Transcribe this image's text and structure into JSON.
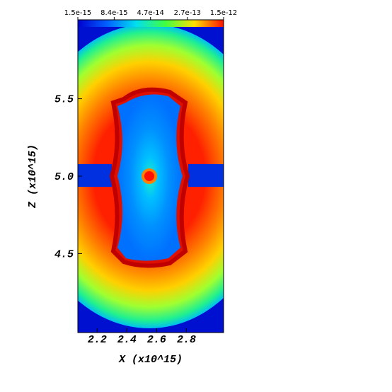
{
  "chart_data": {
    "type": "heatmap",
    "xlabel": "X (x10^15)",
    "ylabel": "Z (x10^15)",
    "xlim": [
      2.07,
      3.05
    ],
    "xticks": [
      2.2,
      2.4,
      2.6,
      2.8
    ],
    "ylim": [
      3.99,
      6.01
    ],
    "yticks": [
      {
        "value": 4.5,
        "label": "4.5"
      },
      {
        "value": 5,
        "label": "5.0"
      },
      {
        "value": 5.5,
        "label": "5.5"
      }
    ],
    "colorbar": {
      "scale": "log",
      "lim": [
        1.5e-15,
        1.5e-12
      ],
      "ticks": [
        1.5e-15,
        8.4e-15,
        4.7e-14,
        2.7e-13,
        1.5e-12
      ]
    }
  }
}
